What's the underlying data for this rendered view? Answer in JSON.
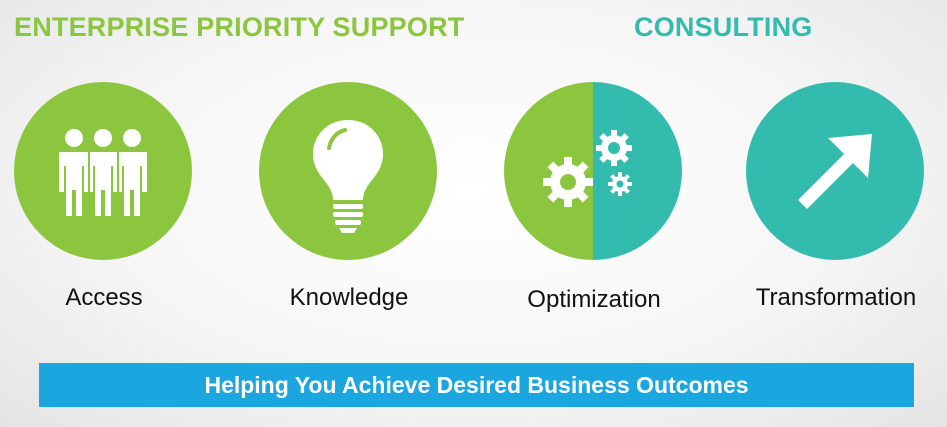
{
  "headings": {
    "support": "ENTERPRISE PRIORITY SUPPORT",
    "consulting": "CONSULTING"
  },
  "colors": {
    "green": "#8cc63f",
    "teal": "#33bcae",
    "banner_blue": "#1ba6e0"
  },
  "tiles": [
    {
      "label": "Access",
      "icon": "people-icon"
    },
    {
      "label": "Knowledge",
      "icon": "lightbulb-icon"
    },
    {
      "label": "Optimization",
      "icon": "gears-icon"
    },
    {
      "label": "Transformation",
      "icon": "arrow-up-right-icon"
    }
  ],
  "banner": {
    "text": "Helping You Achieve Desired Business Outcomes"
  }
}
